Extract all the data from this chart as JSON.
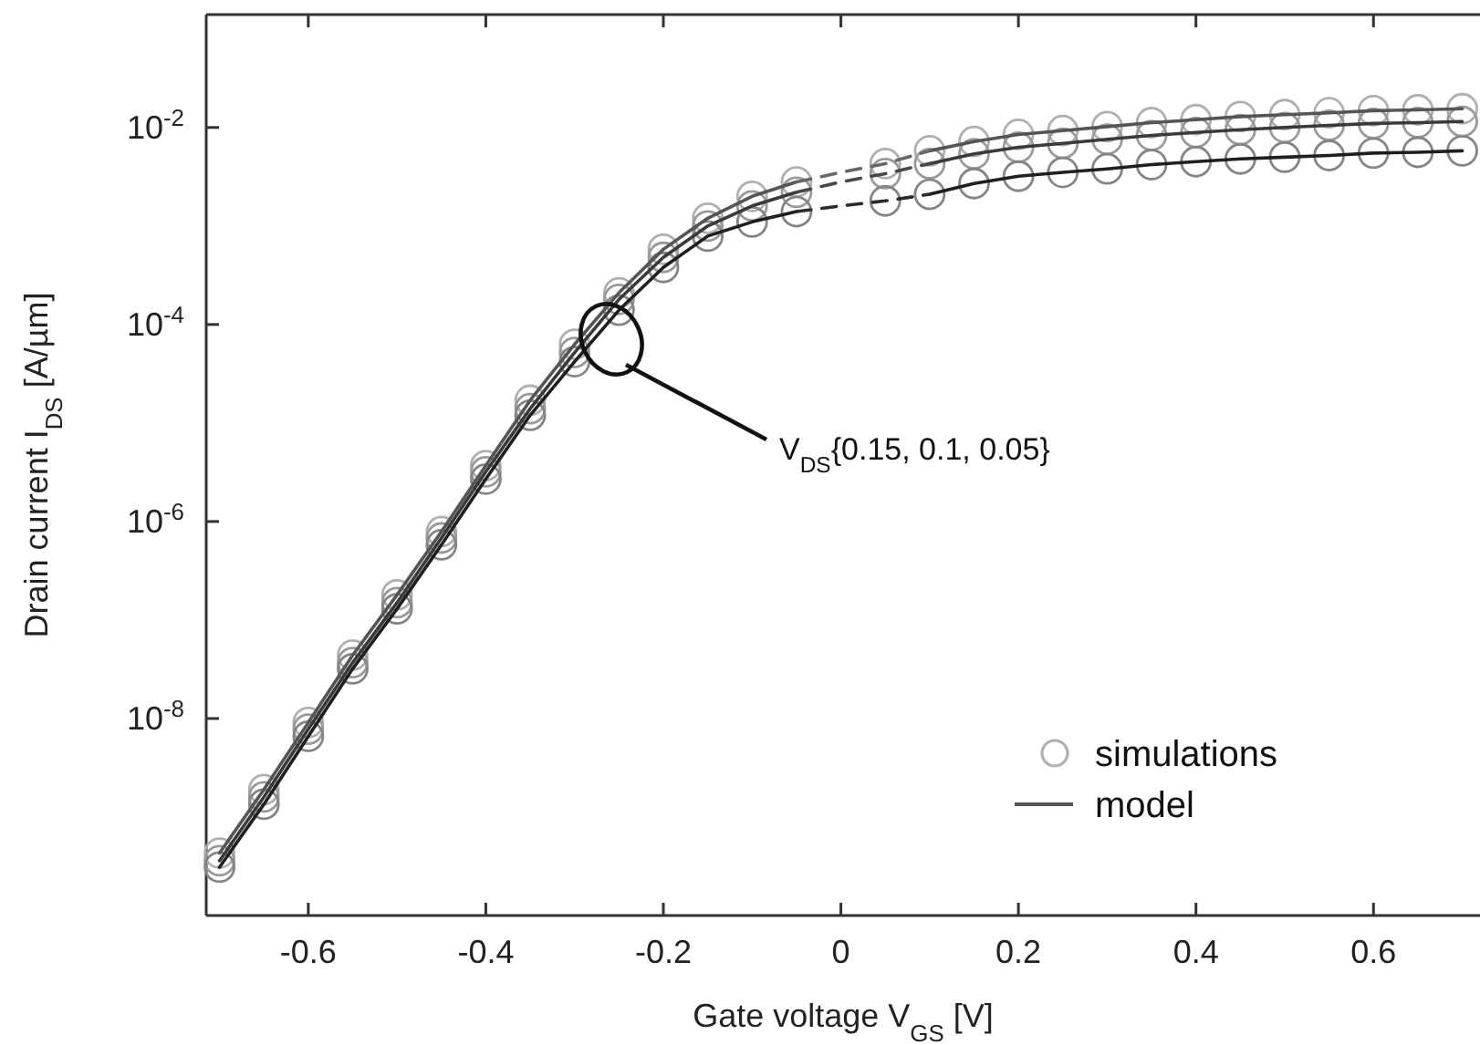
{
  "chart_data": {
    "type": "line",
    "xlabel": "Gate voltage V$_{GS}$ [V]",
    "ylabel": "Drain current I$_{DS}$ [A/µm]",
    "log": "y",
    "grid": false,
    "legend": "bottom right",
    "xlim": [
      -0.715,
      0.72
    ],
    "xticks": [
      -0.6,
      -0.4,
      -0.2,
      0,
      0.2,
      0.4,
      0.6
    ],
    "ylim": [
      1e-10,
      0.14
    ],
    "yticks": [
      {
        "value": 0.01,
        "label": "10$^{-2}$"
      },
      {
        "value": 0.0001,
        "label": "10$^{-4}$"
      },
      {
        "value": 1e-06,
        "label": "10$^{-6}$"
      },
      {
        "value": 1e-08,
        "label": "10$^{-8}$"
      }
    ],
    "annotations": [
      "V$_{DS}${0.15, 0.1, 0.05}"
    ],
    "series": [
      {
        "name": "simulations",
        "type": "scatter",
        "marker": "circle",
        "color": "#b0b0b0",
        "x": [
          -0.7,
          -0.65,
          -0.6,
          -0.55,
          -0.5,
          -0.45,
          -0.4,
          -0.35,
          -0.3,
          -0.25,
          -0.2,
          -0.15,
          -0.1,
          -0.05,
          0.05,
          0.1,
          0.15,
          0.2,
          0.25,
          0.3,
          0.35,
          0.4,
          0.45,
          0.5,
          0.55,
          0.6,
          0.65,
          0.7
        ],
        "values": [
          4.3e-10,
          1.9e-09,
          9.1e-09,
          4.4e-08,
          1.8e-07,
          7.9e-07,
          3.7e-06,
          1.7e-05,
          6.3e-05,
          0.00021,
          0.00058,
          0.0012,
          0.002,
          0.0028,
          0.0043,
          0.0058,
          0.0072,
          0.0085,
          0.0093,
          0.0102,
          0.0112,
          0.012,
          0.0129,
          0.0135,
          0.0141,
          0.0148,
          0.0151,
          0.0155
        ]
      },
      {
        "type": "scatter",
        "marker": "circle",
        "color": "#9a9a9a",
        "x": [
          -0.7,
          -0.65,
          -0.6,
          -0.55,
          -0.5,
          -0.45,
          -0.4,
          -0.35,
          -0.3,
          -0.25,
          -0.2,
          -0.15,
          -0.1,
          -0.05,
          0.05,
          0.1,
          0.15,
          0.2,
          0.25,
          0.3,
          0.35,
          0.4,
          0.45,
          0.5,
          0.55,
          0.6,
          0.65,
          0.7
        ],
        "values": [
          3.6e-10,
          1.6e-09,
          7.8e-09,
          3.7e-08,
          1.5e-07,
          6.8e-07,
          3.2e-06,
          1.4e-05,
          5.2e-05,
          0.00018,
          0.00048,
          0.001,
          0.0016,
          0.0022,
          0.0034,
          0.0043,
          0.0054,
          0.0063,
          0.0069,
          0.0076,
          0.0083,
          0.0089,
          0.0095,
          0.01,
          0.0105,
          0.011,
          0.0112,
          0.0115
        ]
      },
      {
        "type": "scatter",
        "marker": "circle",
        "color": "#858585",
        "x": [
          -0.7,
          -0.65,
          -0.6,
          -0.55,
          -0.5,
          -0.45,
          -0.4,
          -0.35,
          -0.3,
          -0.25,
          -0.2,
          -0.15,
          -0.1,
          -0.05,
          0.05,
          0.1,
          0.15,
          0.2,
          0.25,
          0.3,
          0.35,
          0.4,
          0.45,
          0.5,
          0.55,
          0.6,
          0.65,
          0.7
        ],
        "values": [
          3.1e-10,
          1.35e-09,
          6.6e-09,
          3.2e-08,
          1.3e-07,
          5.8e-07,
          2.7e-06,
          1.2e-05,
          4.2e-05,
          0.00014,
          0.00038,
          0.00079,
          0.0011,
          0.0014,
          0.0018,
          0.0021,
          0.0027,
          0.0032,
          0.0035,
          0.0038,
          0.0042,
          0.0045,
          0.0048,
          0.005,
          0.0052,
          0.0055,
          0.0056,
          0.0058
        ]
      },
      {
        "name": "model",
        "line_style": "solid",
        "color": "#555555",
        "x": [
          -0.7,
          -0.65,
          -0.6,
          -0.55,
          -0.5,
          -0.45,
          -0.4,
          -0.35,
          -0.3,
          -0.25,
          -0.2,
          -0.15,
          -0.1,
          -0.05,
          0,
          0.05,
          0.1,
          0.15,
          0.2,
          0.25,
          0.3,
          0.35,
          0.4,
          0.45,
          0.5,
          0.55,
          0.6,
          0.65,
          0.7
        ],
        "values": [
          4.3e-10,
          1.9e-09,
          9.1e-09,
          4.4e-08,
          1.8e-07,
          7.9e-07,
          3.7e-06,
          1.7e-05,
          6.3e-05,
          0.00021,
          0.00058,
          0.0012,
          0.002,
          0.0028,
          null,
          null,
          0.0058,
          0.0072,
          0.0085,
          0.0093,
          0.0102,
          0.0112,
          0.012,
          0.0129,
          0.0135,
          0.0141,
          0.0148,
          0.0151,
          0.0155
        ]
      },
      {
        "line_style": "solid",
        "color": "#3a3a3a",
        "x": [
          -0.7,
          -0.65,
          -0.6,
          -0.55,
          -0.5,
          -0.45,
          -0.4,
          -0.35,
          -0.3,
          -0.25,
          -0.2,
          -0.15,
          -0.1,
          -0.05,
          0,
          0.05,
          0.1,
          0.15,
          0.2,
          0.25,
          0.3,
          0.35,
          0.4,
          0.45,
          0.5,
          0.55,
          0.6,
          0.65,
          0.7
        ],
        "values": [
          3.6e-10,
          1.6e-09,
          7.8e-09,
          3.7e-08,
          1.5e-07,
          6.8e-07,
          3.2e-06,
          1.4e-05,
          5.2e-05,
          0.00018,
          0.00048,
          0.001,
          0.0016,
          0.0022,
          null,
          null,
          0.0043,
          0.0054,
          0.0063,
          0.0069,
          0.0076,
          0.0083,
          0.0089,
          0.0095,
          0.01,
          0.0105,
          0.011,
          0.0112,
          0.0115
        ]
      },
      {
        "line_style": "solid",
        "color": "#1f1f1f",
        "x": [
          -0.7,
          -0.65,
          -0.6,
          -0.55,
          -0.5,
          -0.45,
          -0.4,
          -0.35,
          -0.3,
          -0.25,
          -0.2,
          -0.15,
          -0.1,
          -0.05,
          0,
          0.05,
          0.1,
          0.15,
          0.2,
          0.25,
          0.3,
          0.35,
          0.4,
          0.45,
          0.5,
          0.55,
          0.6,
          0.65,
          0.7
        ],
        "values": [
          3.1e-10,
          1.35e-09,
          6.6e-09,
          3.2e-08,
          1.3e-07,
          5.8e-07,
          2.7e-06,
          1.2e-05,
          4.2e-05,
          0.00014,
          0.00038,
          0.00079,
          0.0011,
          0.0014,
          null,
          null,
          0.0021,
          0.0027,
          0.0032,
          0.0035,
          0.0038,
          0.0042,
          0.0045,
          0.0048,
          0.005,
          0.0052,
          0.0055,
          0.0056,
          0.0058
        ]
      },
      {
        "line_style": "dashed",
        "color": "#666666",
        "x": [
          -0.05,
          0,
          0.05,
          0.1
        ],
        "values": [
          0.0028,
          0.0035,
          0.0043,
          0.0058
        ]
      },
      {
        "line_style": "dashed",
        "color": "#484848",
        "x": [
          -0.05,
          0,
          0.05,
          0.1
        ],
        "values": [
          0.0022,
          0.0028,
          0.0034,
          0.0043
        ]
      },
      {
        "line_style": "dashed",
        "color": "#2b2b2b",
        "x": [
          -0.05,
          0,
          0.05,
          0.1
        ],
        "values": [
          0.0014,
          0.0016,
          0.0018,
          0.0021
        ]
      }
    ]
  }
}
